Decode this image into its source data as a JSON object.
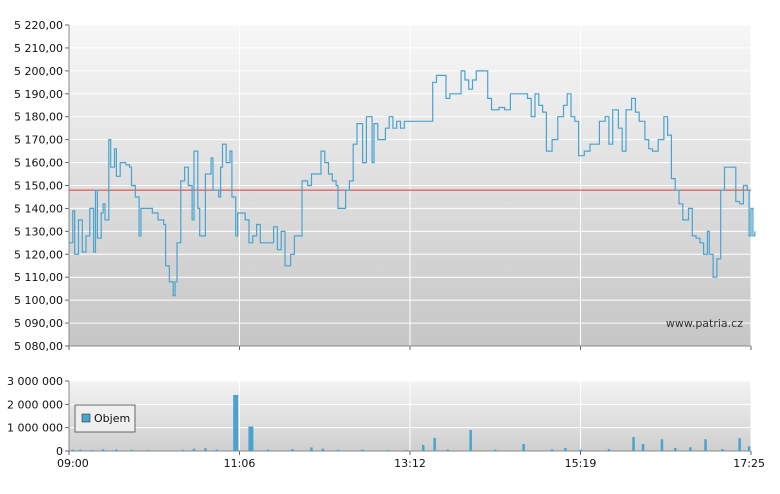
{
  "chart_data": [
    {
      "type": "line",
      "ylim": [
        5080,
        5220
      ],
      "y_ticks": [
        "5 220,00",
        "5 210,00",
        "5 200,00",
        "5 190,00",
        "5 180,00",
        "5 170,00",
        "5 160,00",
        "5 150,00",
        "5 140,00",
        "5 130,00",
        "5 120,00",
        "5 110,00",
        "5 100,00",
        "5 090,00",
        "5 080,00"
      ],
      "y_tick_values": [
        5220,
        5210,
        5200,
        5190,
        5180,
        5170,
        5160,
        5150,
        5140,
        5130,
        5120,
        5110,
        5100,
        5090,
        5080
      ],
      "reference_line": 5148,
      "reference_color": "#e53935",
      "series_color": "#4aa3cf",
      "grid": true,
      "points": [
        [
          0,
          5125
        ],
        [
          2,
          5139
        ],
        [
          3,
          5120
        ],
        [
          5,
          5135
        ],
        [
          7,
          5121
        ],
        [
          9,
          5128
        ],
        [
          11,
          5140
        ],
        [
          13,
          5121
        ],
        [
          14,
          5148
        ],
        [
          15,
          5127
        ],
        [
          17,
          5138
        ],
        [
          18,
          5142
        ],
        [
          19,
          5135
        ],
        [
          21,
          5170
        ],
        [
          22,
          5158
        ],
        [
          24,
          5166
        ],
        [
          25,
          5154
        ],
        [
          27,
          5160
        ],
        [
          30,
          5159
        ],
        [
          32,
          5158
        ],
        [
          33,
          5150
        ],
        [
          35,
          5145
        ],
        [
          37,
          5128
        ],
        [
          38,
          5140
        ],
        [
          42,
          5140
        ],
        [
          44,
          5138
        ],
        [
          47,
          5135
        ],
        [
          50,
          5133
        ],
        [
          51,
          5115
        ],
        [
          53,
          5108
        ],
        [
          55,
          5102
        ],
        [
          56,
          5108
        ],
        [
          57,
          5125
        ],
        [
          59,
          5152
        ],
        [
          61,
          5158
        ],
        [
          63,
          5150
        ],
        [
          65,
          5135
        ],
        [
          66,
          5165
        ],
        [
          68,
          5140
        ],
        [
          69,
          5128
        ],
        [
          71,
          5128
        ],
        [
          72,
          5155
        ],
        [
          75,
          5162
        ],
        [
          76,
          5148
        ],
        [
          79,
          5145
        ],
        [
          80,
          5158
        ],
        [
          81,
          5168
        ],
        [
          83,
          5160
        ],
        [
          85,
          5165
        ],
        [
          86,
          5145
        ],
        [
          88,
          5128
        ],
        [
          89,
          5138
        ],
        [
          93,
          5135
        ],
        [
          95,
          5125
        ],
        [
          97,
          5128
        ],
        [
          99,
          5133
        ],
        [
          101,
          5125
        ],
        [
          104,
          5125
        ],
        [
          106,
          5125
        ],
        [
          108,
          5132
        ],
        [
          110,
          5122
        ],
        [
          112,
          5130
        ],
        [
          114,
          5115
        ],
        [
          117,
          5120
        ],
        [
          119,
          5128
        ],
        [
          122,
          5128
        ],
        [
          123,
          5152
        ],
        [
          126,
          5150
        ],
        [
          128,
          5155
        ],
        [
          130,
          5155
        ],
        [
          133,
          5165
        ],
        [
          135,
          5160
        ],
        [
          137,
          5155
        ],
        [
          139,
          5152
        ],
        [
          141,
          5150
        ],
        [
          142,
          5140
        ],
        [
          145,
          5140
        ],
        [
          146,
          5148
        ],
        [
          148,
          5152
        ],
        [
          150,
          5168
        ],
        [
          152,
          5177
        ],
        [
          155,
          5160
        ],
        [
          157,
          5180
        ],
        [
          160,
          5160
        ],
        [
          161,
          5177
        ],
        [
          163,
          5170
        ],
        [
          165,
          5170
        ],
        [
          167,
          5175
        ],
        [
          169,
          5180
        ],
        [
          171,
          5175
        ],
        [
          173,
          5178
        ],
        [
          175,
          5175
        ],
        [
          177,
          5178
        ],
        [
          190,
          5178
        ],
        [
          192,
          5195
        ],
        [
          194,
          5198
        ],
        [
          198,
          5198
        ],
        [
          199,
          5188
        ],
        [
          201,
          5190
        ],
        [
          205,
          5190
        ],
        [
          207,
          5200
        ],
        [
          209,
          5196
        ],
        [
          211,
          5192
        ],
        [
          213,
          5196
        ],
        [
          215,
          5200
        ],
        [
          220,
          5200
        ],
        [
          221,
          5188
        ],
        [
          223,
          5183
        ],
        [
          227,
          5184
        ],
        [
          230,
          5183
        ],
        [
          233,
          5190
        ],
        [
          240,
          5190
        ],
        [
          242,
          5188
        ],
        [
          244,
          5180
        ],
        [
          246,
          5190
        ],
        [
          248,
          5185
        ],
        [
          250,
          5182
        ],
        [
          252,
          5165
        ],
        [
          255,
          5170
        ],
        [
          258,
          5180
        ],
        [
          261,
          5185
        ],
        [
          263,
          5190
        ],
        [
          265,
          5180
        ],
        [
          267,
          5178
        ],
        [
          269,
          5163
        ],
        [
          272,
          5165
        ],
        [
          275,
          5168
        ],
        [
          278,
          5168
        ],
        [
          280,
          5178
        ],
        [
          283,
          5180
        ],
        [
          285,
          5168
        ],
        [
          287,
          5183
        ],
        [
          290,
          5175
        ],
        [
          292,
          5165
        ],
        [
          294,
          5183
        ],
        [
          297,
          5188
        ],
        [
          299,
          5182
        ],
        [
          301,
          5178
        ],
        [
          304,
          5170
        ],
        [
          306,
          5166
        ],
        [
          308,
          5165
        ],
        [
          311,
          5170
        ],
        [
          314,
          5180
        ],
        [
          316,
          5172
        ],
        [
          318,
          5153
        ],
        [
          320,
          5148
        ],
        [
          322,
          5142
        ],
        [
          324,
          5135
        ],
        [
          327,
          5140
        ],
        [
          329,
          5128
        ],
        [
          331,
          5127
        ],
        [
          333,
          5125
        ],
        [
          335,
          5120
        ],
        [
          337,
          5130
        ],
        [
          338,
          5120
        ],
        [
          340,
          5110
        ],
        [
          342,
          5118
        ],
        [
          344,
          5148
        ],
        [
          346,
          5158
        ],
        [
          350,
          5158
        ],
        [
          352,
          5143
        ],
        [
          354,
          5142
        ],
        [
          356,
          5150
        ],
        [
          358,
          5148
        ],
        [
          359,
          5128
        ],
        [
          360,
          5140
        ],
        [
          361,
          5128
        ],
        [
          362,
          5130
        ]
      ]
    },
    {
      "type": "bar",
      "ylim": [
        0,
        3000000
      ],
      "y_ticks": [
        "3 000 000",
        "2 000 000",
        "1 000 000",
        "0"
      ],
      "y_tick_values": [
        3000000,
        2000000,
        1000000,
        0
      ],
      "x_ticks": [
        "09:00",
        "11:06",
        "13:12",
        "15:19",
        "17:25"
      ],
      "x_tick_positions": [
        0,
        90,
        180,
        270,
        360
      ],
      "legend": [
        "Objem"
      ],
      "legend_position": "left",
      "series_color": "#4aa3cf",
      "bars": [
        [
          2,
          50000
        ],
        [
          6,
          60000
        ],
        [
          12,
          40000
        ],
        [
          18,
          70000
        ],
        [
          25,
          60000
        ],
        [
          33,
          50000
        ],
        [
          42,
          40000
        ],
        [
          52,
          30000
        ],
        [
          60,
          50000
        ],
        [
          66,
          100000
        ],
        [
          72,
          120000
        ],
        [
          78,
          60000
        ],
        [
          88,
          2400000
        ],
        [
          96,
          1050000
        ],
        [
          105,
          60000
        ],
        [
          118,
          80000
        ],
        [
          128,
          150000
        ],
        [
          134,
          100000
        ],
        [
          142,
          50000
        ],
        [
          155,
          60000
        ],
        [
          168,
          40000
        ],
        [
          178,
          40000
        ],
        [
          187,
          260000
        ],
        [
          193,
          560000
        ],
        [
          200,
          60000
        ],
        [
          212,
          900000
        ],
        [
          225,
          60000
        ],
        [
          240,
          300000
        ],
        [
          255,
          70000
        ],
        [
          262,
          130000
        ],
        [
          270,
          60000
        ],
        [
          285,
          80000
        ],
        [
          298,
          600000
        ],
        [
          303,
          300000
        ],
        [
          313,
          500000
        ],
        [
          320,
          130000
        ],
        [
          328,
          160000
        ],
        [
          336,
          500000
        ],
        [
          345,
          80000
        ],
        [
          354,
          550000
        ],
        [
          359,
          200000
        ]
      ]
    }
  ],
  "watermark": "www.patria.cz"
}
